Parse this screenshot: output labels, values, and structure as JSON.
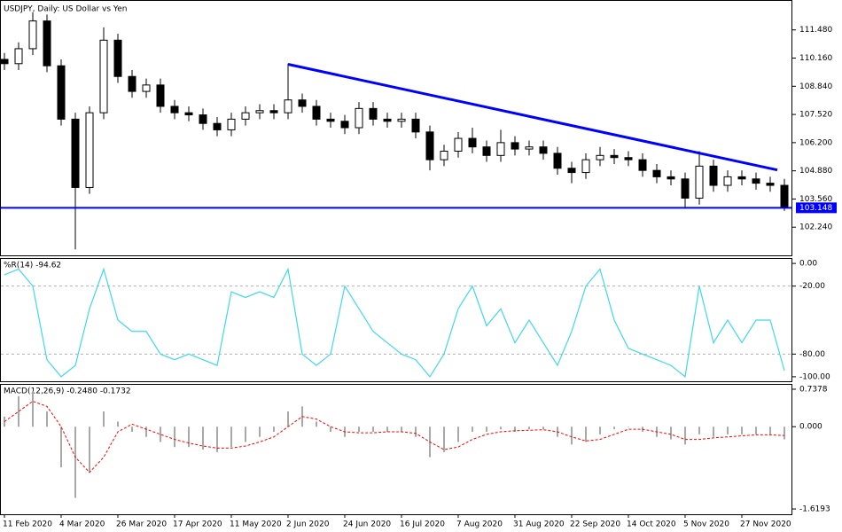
{
  "chart_data": [
    {
      "type": "candlestick",
      "title": "USDJPY, Daily:  US Dollar vs Yen",
      "ylim": [
        100.92,
        112.84
      ],
      "yticks": [
        {
          "value": 111.48,
          "label": "111.480"
        },
        {
          "value": 110.16,
          "label": "110.160"
        },
        {
          "value": 108.84,
          "label": "108.840"
        },
        {
          "value": 107.52,
          "label": "107.520"
        },
        {
          "value": 106.2,
          "label": "106.200"
        },
        {
          "value": 104.88,
          "label": "104.880"
        },
        {
          "value": 103.56,
          "label": "103.560"
        },
        {
          "value": 102.24,
          "label": "102.240"
        }
      ],
      "open": [
        110.1,
        109.9,
        110.6,
        111.9,
        109.8,
        107.3,
        104.1,
        107.6,
        111.0,
        109.3,
        108.6,
        108.9,
        107.9,
        107.6,
        107.5,
        107.1,
        106.8,
        107.3,
        107.6,
        107.7,
        107.6,
        108.2,
        107.9,
        107.3,
        107.2,
        106.9,
        107.8,
        107.3,
        107.2,
        107.3,
        106.7,
        105.4,
        105.8,
        106.4,
        106.0,
        105.6,
        106.2,
        105.9,
        106.0,
        105.7,
        105.0,
        104.8,
        105.4,
        105.6,
        105.5,
        105.4,
        104.9,
        104.6,
        104.5,
        103.6,
        105.1,
        104.2,
        104.6,
        104.5,
        104.3,
        104.2
      ],
      "high": [
        110.4,
        110.9,
        112.3,
        112.2,
        110.1,
        107.6,
        107.9,
        111.6,
        111.3,
        109.6,
        109.2,
        109.2,
        108.2,
        107.9,
        107.8,
        107.4,
        107.6,
        107.9,
        108.0,
        108.0,
        109.9,
        108.5,
        108.2,
        107.6,
        107.5,
        108.1,
        108.1,
        107.6,
        107.6,
        107.6,
        107.0,
        106.1,
        106.7,
        106.9,
        106.3,
        106.8,
        106.5,
        106.3,
        106.3,
        106.0,
        105.3,
        105.7,
        106.0,
        105.9,
        105.8,
        105.7,
        105.2,
        104.9,
        104.8,
        105.8,
        105.4,
        104.9,
        104.9,
        104.8,
        104.6,
        104.5
      ],
      "low": [
        109.6,
        109.6,
        110.3,
        109.5,
        107.0,
        101.2,
        103.8,
        107.3,
        109.0,
        108.3,
        108.3,
        107.6,
        107.3,
        107.2,
        106.8,
        106.5,
        106.5,
        107.0,
        107.3,
        107.3,
        107.3,
        107.6,
        107.0,
        106.9,
        106.6,
        106.6,
        107.0,
        106.9,
        106.9,
        106.4,
        104.9,
        105.1,
        105.5,
        105.7,
        105.3,
        105.3,
        105.6,
        105.6,
        105.4,
        104.7,
        104.3,
        104.5,
        105.1,
        105.2,
        105.1,
        104.6,
        104.3,
        104.2,
        103.1,
        103.3,
        103.9,
        103.9,
        104.2,
        104.0,
        103.9,
        103.0
      ],
      "close": [
        109.9,
        110.6,
        111.9,
        109.8,
        107.3,
        104.1,
        107.6,
        111.0,
        109.3,
        108.6,
        108.9,
        107.9,
        107.6,
        107.5,
        107.1,
        106.8,
        107.3,
        107.6,
        107.7,
        107.6,
        108.2,
        107.9,
        107.3,
        107.2,
        106.9,
        107.8,
        107.3,
        107.2,
        107.3,
        106.7,
        105.4,
        105.8,
        106.4,
        106.0,
        105.6,
        106.2,
        105.9,
        106.0,
        105.7,
        105.0,
        104.8,
        105.4,
        105.6,
        105.5,
        105.4,
        104.9,
        104.6,
        104.5,
        103.6,
        105.1,
        104.2,
        104.6,
        104.5,
        104.3,
        104.2,
        103.15
      ],
      "trendline": {
        "x": [
          20,
          54.5
        ],
        "y": [
          109.87,
          104.92
        ],
        "color": "#0000ff"
      },
      "price_line": {
        "value": 103.148,
        "label": "103.148",
        "color": "#0000ff"
      }
    },
    {
      "type": "line",
      "title": "%R(14) -94.62",
      "color": "#3fd8ec",
      "ylim": [
        -104,
        4
      ],
      "yticks": [
        {
          "value": 0,
          "label": "0.00"
        },
        {
          "value": -20,
          "label": "-20.00"
        },
        {
          "value": -80,
          "label": "-80.00"
        },
        {
          "value": -100,
          "label": "-100.00"
        }
      ],
      "grid_levels": [
        -20,
        -80
      ],
      "values": [
        -10,
        -5,
        -20,
        -85,
        -100,
        -90,
        -40,
        -5,
        -50,
        -60,
        -60,
        -80,
        -85,
        -80,
        -85,
        -90,
        -25,
        -30,
        -25,
        -30,
        -5,
        -80,
        -90,
        -80,
        -20,
        -40,
        -60,
        -70,
        -80,
        -85,
        -100,
        -80,
        -40,
        -20,
        -55,
        -40,
        -70,
        -50,
        -70,
        -90,
        -60,
        -20,
        -5,
        -50,
        -75,
        -80,
        -85,
        -90,
        -100,
        -20,
        -70,
        -50,
        -70,
        -50,
        -50,
        -94.62
      ]
    },
    {
      "type": "macd",
      "title": "MACD(12,26,9) -0.2480 -0.1732",
      "ylim": [
        -1.7233,
        0.8245
      ],
      "yticks": [
        {
          "value": 0.7378,
          "label": "0.7378"
        },
        {
          "value": 0,
          "label": "0.000"
        },
        {
          "value": -1.6193,
          "label": "-1.6193"
        }
      ],
      "categories": [
        "11 Feb 2020",
        null,
        null,
        null,
        "4 Mar 2020",
        null,
        null,
        null,
        "26 Mar 2020",
        null,
        null,
        null,
        "17 Apr 2020",
        null,
        null,
        null,
        "11 May 2020",
        null,
        null,
        null,
        "2 Jun 2020",
        null,
        null,
        null,
        "24 Jun 2020",
        null,
        null,
        null,
        "16 Jul 2020",
        null,
        null,
        null,
        "7 Aug 2020",
        null,
        null,
        null,
        "31 Aug 2020",
        null,
        null,
        null,
        "22 Sep 2020",
        null,
        null,
        null,
        "14 Oct 2020",
        null,
        null,
        null,
        "5 Nov 2020",
        null,
        null,
        null,
        "27 Nov 2020",
        null,
        null,
        null
      ],
      "series": [
        {
          "type": "bar",
          "color": "#a8a8a8",
          "values": [
            0.2,
            0.6,
            0.7,
            0.3,
            -0.8,
            -1.4,
            -0.9,
            0.3,
            0.1,
            -0.1,
            -0.2,
            -0.3,
            -0.4,
            -0.4,
            -0.45,
            -0.5,
            -0.4,
            -0.3,
            -0.2,
            -0.1,
            0.3,
            0.4,
            0.1,
            -0.1,
            -0.2,
            -0.1,
            -0.1,
            -0.1,
            -0.1,
            -0.2,
            -0.6,
            -0.5,
            -0.3,
            -0.1,
            -0.1,
            -0.05,
            -0.1,
            -0.05,
            -0.05,
            -0.2,
            -0.35,
            -0.3,
            -0.15,
            -0.05,
            0.0,
            -0.1,
            -0.2,
            -0.25,
            -0.35,
            -0.15,
            -0.2,
            -0.15,
            -0.15,
            -0.15,
            -0.15,
            -0.248
          ]
        },
        {
          "type": "line",
          "color": "#ff0000",
          "dashed": true,
          "values": [
            0.1,
            0.3,
            0.5,
            0.4,
            0.0,
            -0.6,
            -0.9,
            -0.6,
            -0.1,
            0.05,
            -0.05,
            -0.15,
            -0.25,
            -0.32,
            -0.38,
            -0.42,
            -0.42,
            -0.38,
            -0.3,
            -0.2,
            0.0,
            0.2,
            0.15,
            0.0,
            -0.1,
            -0.12,
            -0.12,
            -0.1,
            -0.1,
            -0.13,
            -0.3,
            -0.45,
            -0.4,
            -0.25,
            -0.15,
            -0.1,
            -0.08,
            -0.07,
            -0.06,
            -0.1,
            -0.2,
            -0.28,
            -0.25,
            -0.15,
            -0.05,
            -0.05,
            -0.1,
            -0.15,
            -0.25,
            -0.25,
            -0.22,
            -0.2,
            -0.18,
            -0.16,
            -0.16,
            -0.1732
          ]
        }
      ]
    }
  ]
}
